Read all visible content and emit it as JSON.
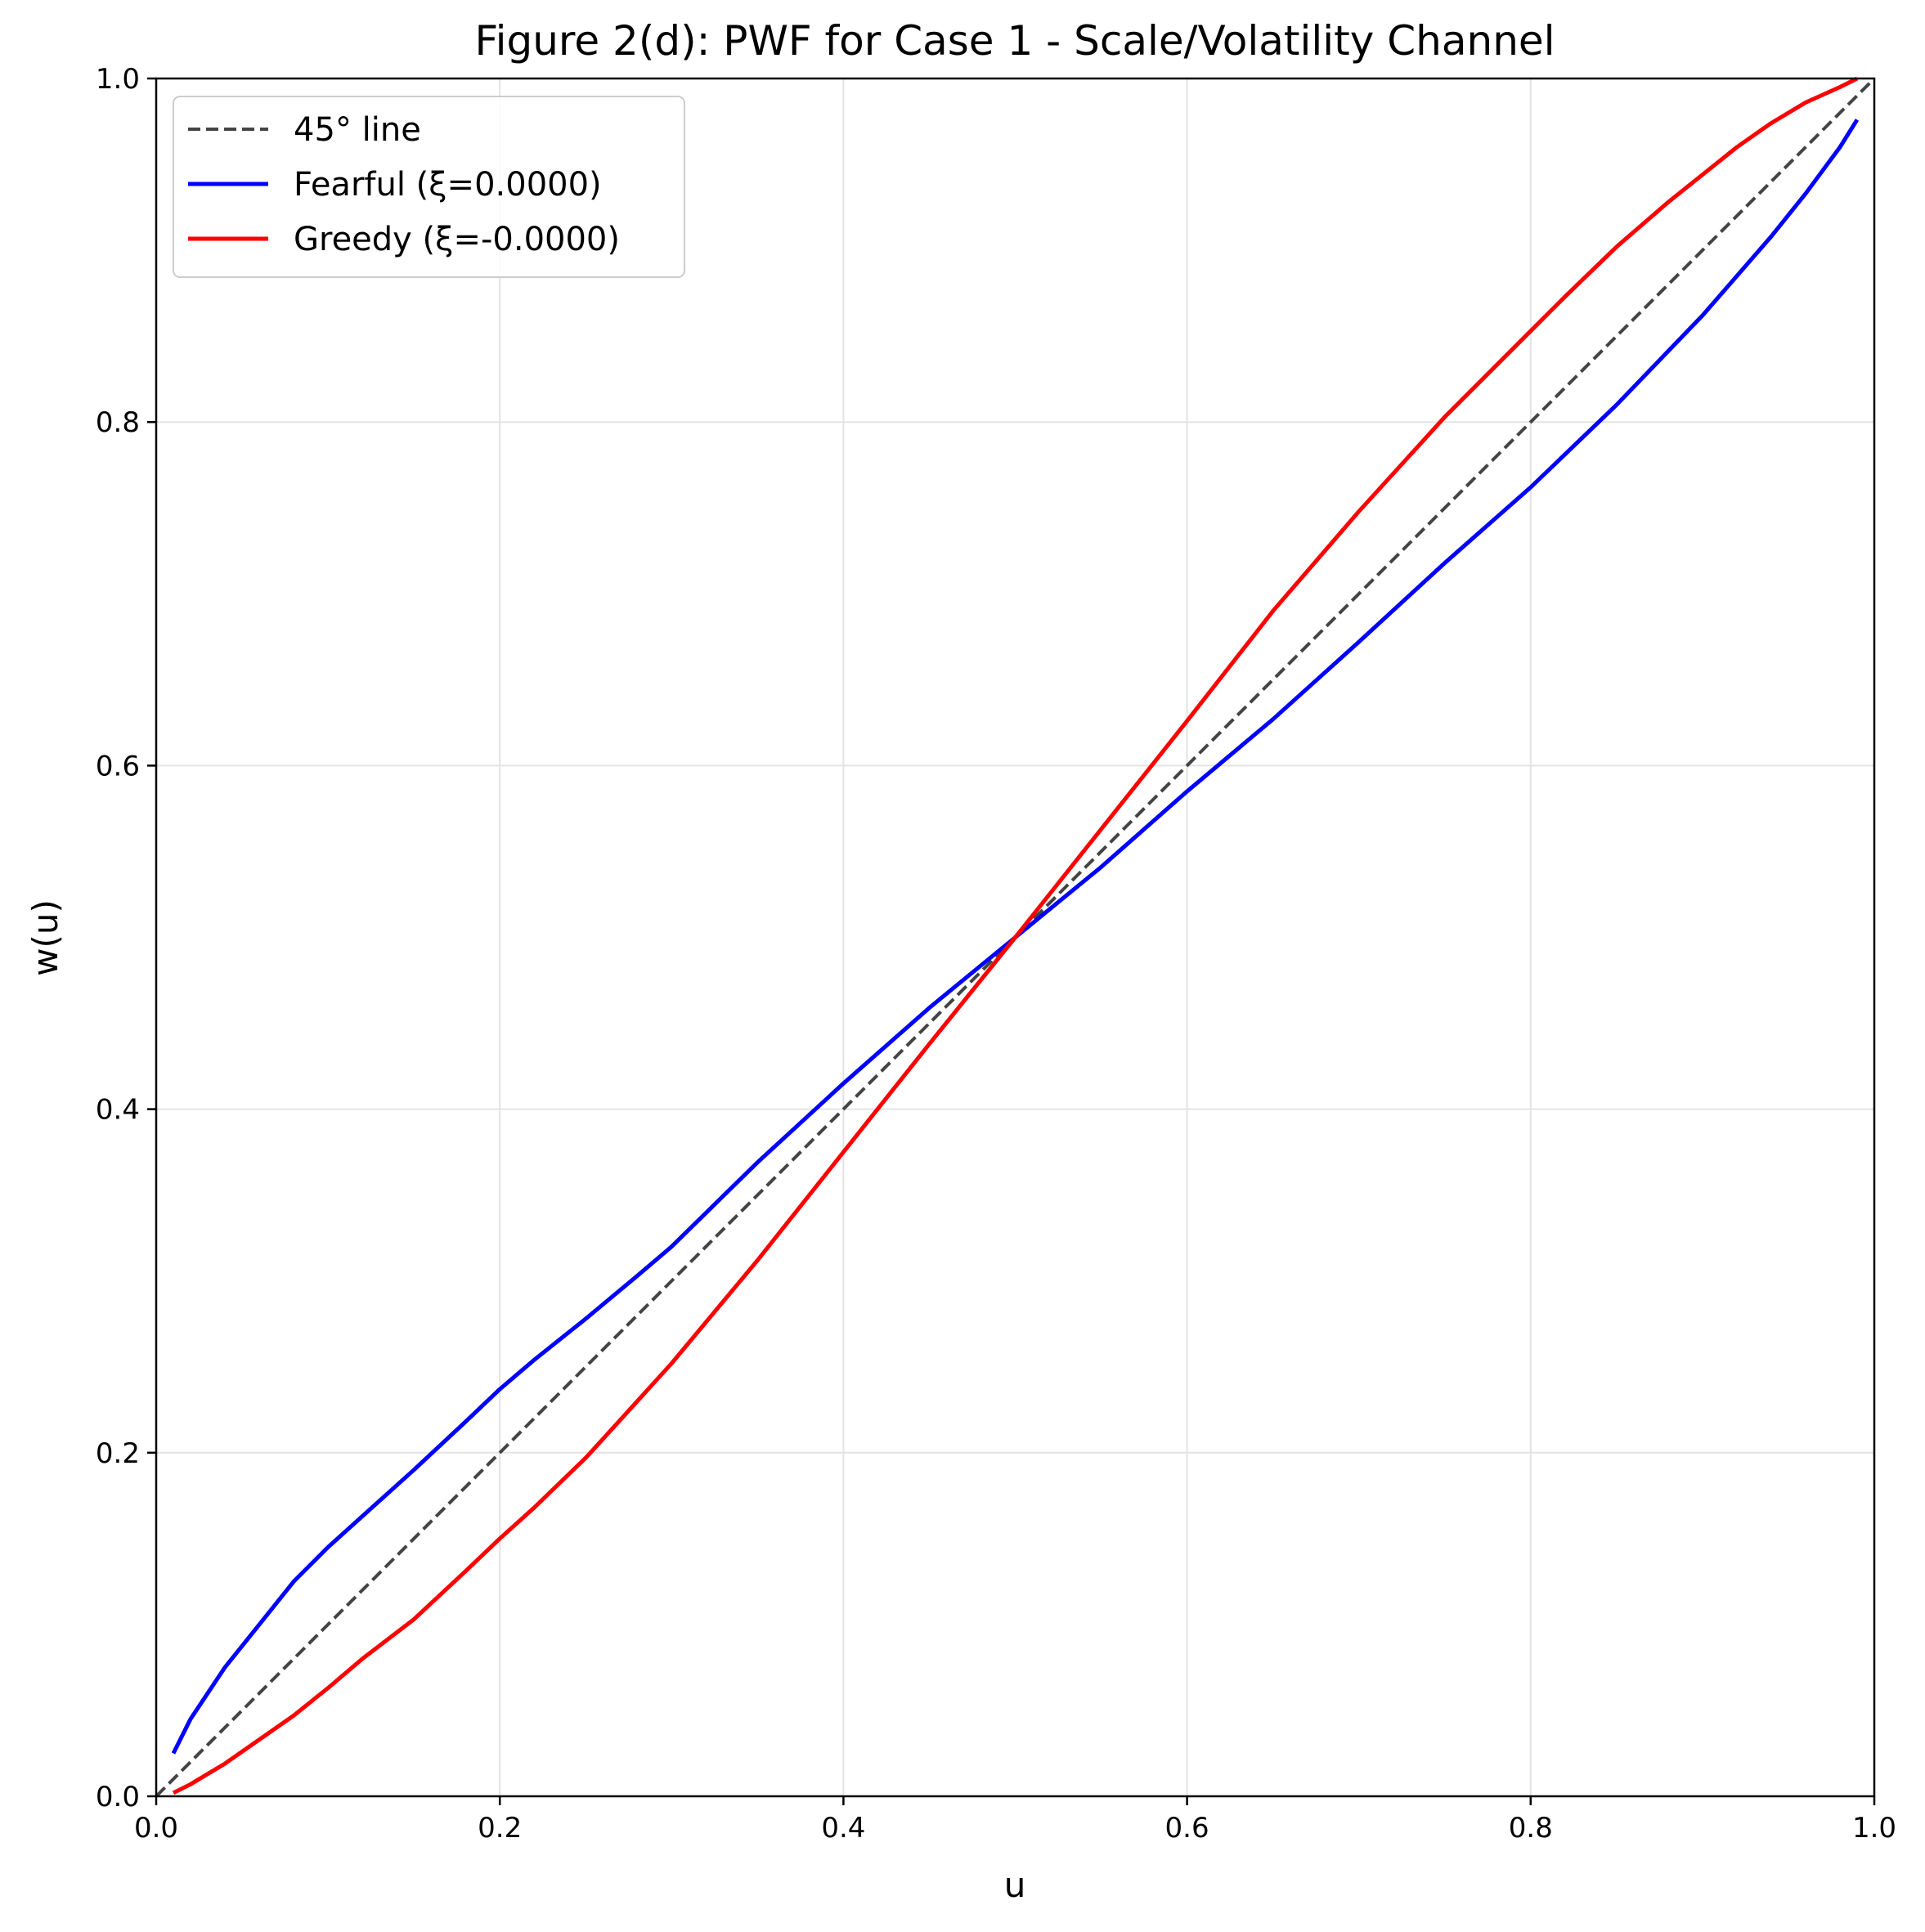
{
  "chart_data": {
    "type": "line",
    "title": "Figure 2(d): PWF for Case 1 - Scale/Volatility Channel",
    "xlabel": "u",
    "ylabel": "w(u)",
    "xlim": [
      0.0,
      1.0
    ],
    "ylim": [
      0.0,
      1.0
    ],
    "xticks": [
      "0.0",
      "0.2",
      "0.4",
      "0.6",
      "0.8",
      "1.0"
    ],
    "yticks": [
      "0.0",
      "0.2",
      "0.4",
      "0.6",
      "0.8",
      "1.0"
    ],
    "grid": true,
    "legend_position": "top-left",
    "series": [
      {
        "name": "45° line",
        "color": "#444444",
        "style": "dashed",
        "x": [
          0.0,
          1.0
        ],
        "y": [
          0.0,
          1.0
        ]
      },
      {
        "name": "Fearful (ξ=0.0000)",
        "color": "#0000ff",
        "style": "solid",
        "x": [
          0.01,
          0.02,
          0.04,
          0.06,
          0.08,
          0.1,
          0.12,
          0.15,
          0.18,
          0.2,
          0.22,
          0.25,
          0.28,
          0.3,
          0.35,
          0.4,
          0.45,
          0.5,
          0.55,
          0.6,
          0.65,
          0.7,
          0.75,
          0.8,
          0.85,
          0.9,
          0.92,
          0.94,
          0.96,
          0.98,
          0.99
        ],
        "y": [
          0.025,
          0.045,
          0.075,
          0.1,
          0.125,
          0.145,
          0.163,
          0.19,
          0.218,
          0.237,
          0.254,
          0.278,
          0.303,
          0.32,
          0.369,
          0.415,
          0.459,
          0.5,
          0.541,
          0.585,
          0.627,
          0.672,
          0.718,
          0.762,
          0.81,
          0.862,
          0.885,
          0.908,
          0.933,
          0.96,
          0.976
        ]
      },
      {
        "name": "Greedy (ξ=-0.0000)",
        "color": "#ff0000",
        "style": "solid",
        "x": [
          0.01,
          0.02,
          0.04,
          0.06,
          0.08,
          0.1,
          0.12,
          0.15,
          0.18,
          0.2,
          0.22,
          0.25,
          0.28,
          0.3,
          0.35,
          0.4,
          0.45,
          0.5,
          0.55,
          0.6,
          0.65,
          0.7,
          0.75,
          0.8,
          0.82,
          0.85,
          0.88,
          0.9,
          0.92,
          0.94,
          0.96,
          0.98,
          0.99
        ],
        "y": [
          0.002,
          0.007,
          0.019,
          0.033,
          0.047,
          0.063,
          0.08,
          0.103,
          0.131,
          0.15,
          0.168,
          0.197,
          0.23,
          0.252,
          0.312,
          0.375,
          0.438,
          0.5,
          0.563,
          0.626,
          0.69,
          0.748,
          0.803,
          0.853,
          0.873,
          0.902,
          0.928,
          0.944,
          0.96,
          0.974,
          0.986,
          0.995,
          1.0
        ]
      }
    ]
  }
}
